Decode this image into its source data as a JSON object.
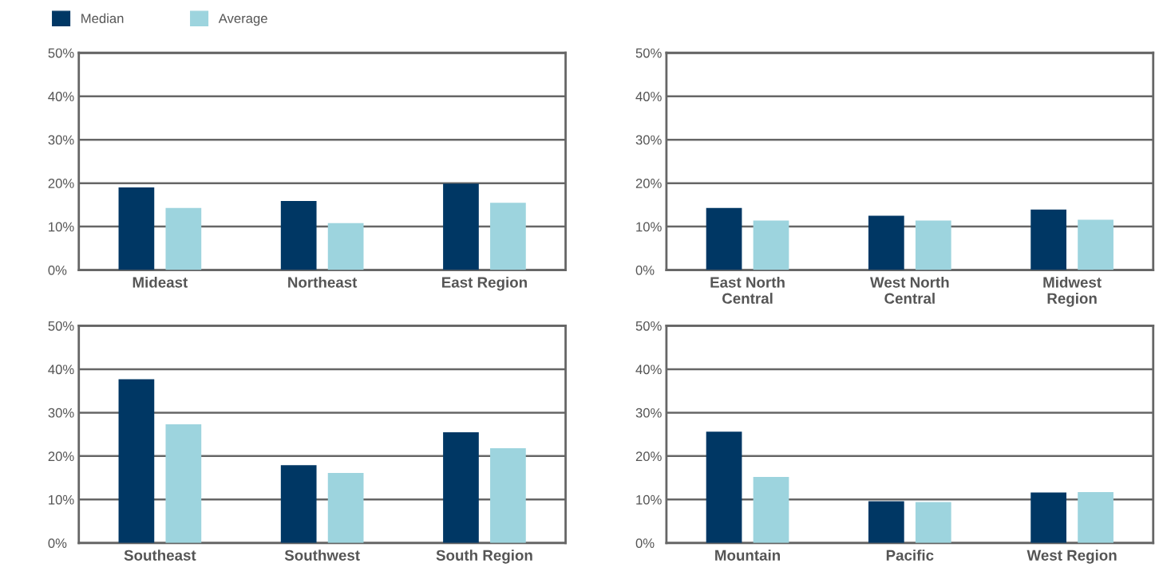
{
  "chart_data": [
    {
      "type": "bar",
      "categories": [
        "Mideast",
        "Northeast",
        "East Region"
      ],
      "series": [
        {
          "name": "Median",
          "color": "#003764",
          "values": [
            19.0,
            15.9,
            19.9
          ]
        },
        {
          "name": "Average",
          "color": "#9dd4de",
          "values": [
            14.3,
            10.8,
            15.5
          ]
        }
      ],
      "ylim": [
        0,
        50
      ],
      "yticks": [
        {
          "value": 0,
          "label": "0%"
        },
        {
          "value": 10,
          "label": "10%"
        },
        {
          "value": 20,
          "label": "20%"
        },
        {
          "value": 30,
          "label": "30%"
        },
        {
          "value": 40,
          "label": "40%"
        },
        {
          "value": 50,
          "label": "50%"
        }
      ],
      "grid": "y",
      "legend": "top left"
    },
    {
      "type": "bar",
      "categories": [
        "East North\nCentral",
        "West North\nCentral",
        "Midwest\nRegion"
      ],
      "series": [
        {
          "color": "#003764",
          "values": [
            14.3,
            12.5,
            13.9
          ]
        },
        {
          "color": "#9dd4de",
          "values": [
            11.4,
            11.4,
            11.6
          ]
        }
      ],
      "ylim": [
        0,
        50
      ],
      "yticks": [
        {
          "value": 0,
          "label": "0%"
        },
        {
          "value": 10,
          "label": "10%"
        },
        {
          "value": 20,
          "label": "20%"
        },
        {
          "value": 30,
          "label": "30%"
        },
        {
          "value": 40,
          "label": "40%"
        },
        {
          "value": 50,
          "label": "50%"
        }
      ],
      "grid": "y"
    },
    {
      "type": "bar",
      "categories": [
        "Southeast",
        "Southwest",
        "South Region"
      ],
      "series": [
        {
          "color": "#003764",
          "values": [
            37.7,
            17.9,
            25.5
          ]
        },
        {
          "color": "#9dd4de",
          "values": [
            27.3,
            16.1,
            21.8
          ]
        }
      ],
      "ylim": [
        0,
        50
      ],
      "yticks": [
        {
          "value": 0,
          "label": "0%"
        },
        {
          "value": 10,
          "label": "10%"
        },
        {
          "value": 20,
          "label": "20%"
        },
        {
          "value": 30,
          "label": "30%"
        },
        {
          "value": 40,
          "label": "40%"
        },
        {
          "value": 50,
          "label": "50%"
        }
      ],
      "grid": "y"
    },
    {
      "type": "bar",
      "categories": [
        "Mountain",
        "Pacific",
        "West Region"
      ],
      "series": [
        {
          "color": "#003764",
          "values": [
            25.6,
            9.6,
            11.6
          ]
        },
        {
          "color": "#9dd4de",
          "values": [
            15.2,
            9.4,
            11.7
          ]
        }
      ],
      "ylim": [
        0,
        50
      ],
      "yticks": [
        {
          "value": 0,
          "label": "0%"
        },
        {
          "value": 10,
          "label": "10%"
        },
        {
          "value": 20,
          "label": "20%"
        },
        {
          "value": 30,
          "label": "30%"
        },
        {
          "value": 40,
          "label": "40%"
        },
        {
          "value": 50,
          "label": "50%"
        }
      ],
      "grid": "y"
    }
  ]
}
